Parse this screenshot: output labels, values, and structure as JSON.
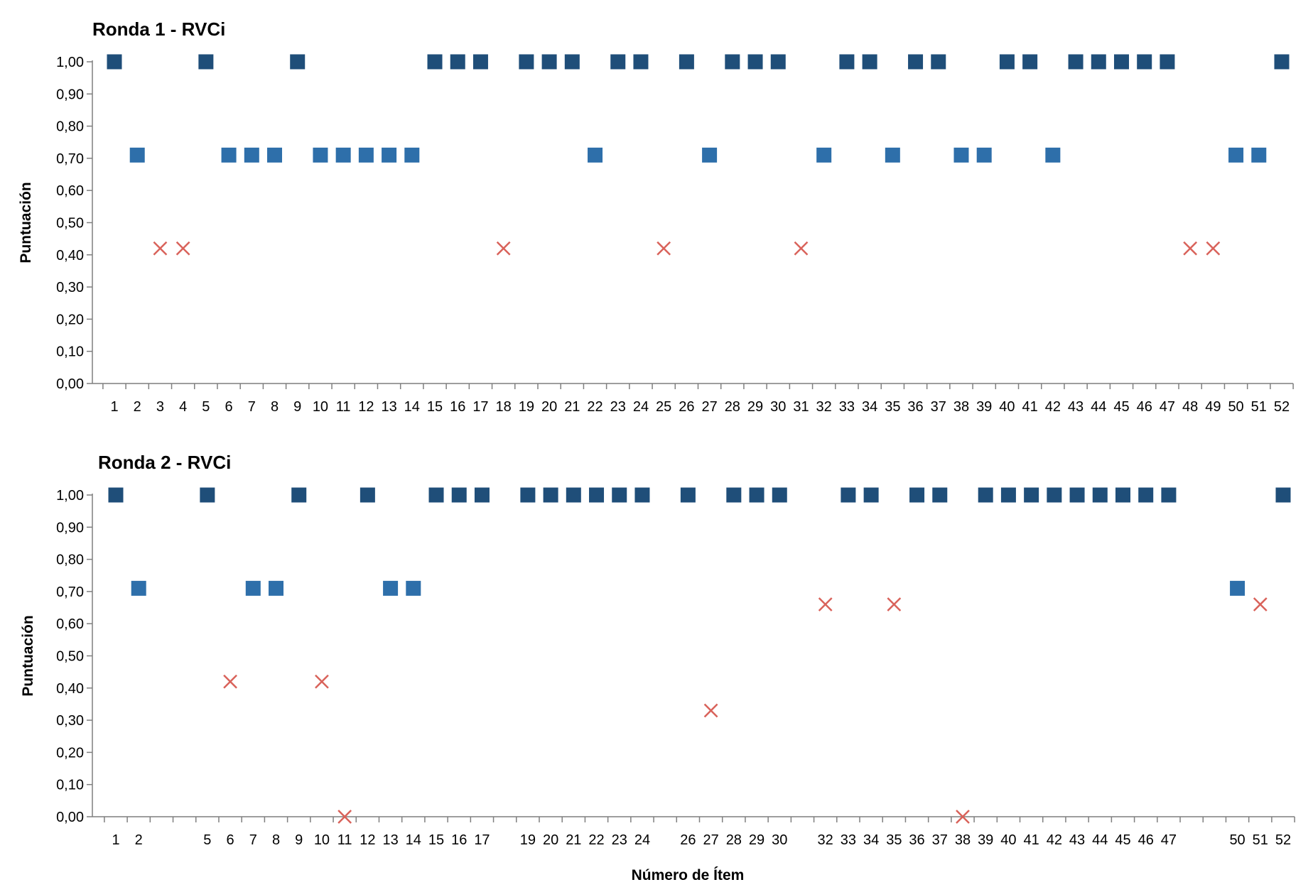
{
  "colors": {
    "dark_square": "#1F4E79",
    "light_square": "#2E6FAA",
    "cross": "#D9625A",
    "axis": "#7F7F7F"
  },
  "x_axis_label": "Número de Ítem",
  "chart_data": [
    {
      "type": "scatter",
      "title": "Ronda 1 - RVCi",
      "ylabel": "Puntuación",
      "xlabel": "",
      "ylim": [
        0,
        1
      ],
      "y_ticks": [
        "0,00",
        "0,10",
        "0,20",
        "0,30",
        "0,40",
        "0,50",
        "0,60",
        "0,70",
        "0,80",
        "0,90",
        "1,00"
      ],
      "x_range": [
        1,
        52
      ],
      "x_tick_labels": [
        "1",
        "2",
        "3",
        "4",
        "5",
        "6",
        "7",
        "8",
        "9",
        "10",
        "11",
        "12",
        "13",
        "14",
        "15",
        "16",
        "17",
        "18",
        "19",
        "20",
        "21",
        "22",
        "23",
        "24",
        "25",
        "26",
        "27",
        "28",
        "29",
        "30",
        "31",
        "32",
        "33",
        "34",
        "35",
        "36",
        "37",
        "38",
        "39",
        "40",
        "41",
        "42",
        "43",
        "44",
        "45",
        "46",
        "47",
        "48",
        "49",
        "50",
        "51",
        "52"
      ],
      "series": [
        {
          "marker": "dark-square",
          "y": 1.0,
          "x": [
            1,
            5,
            9,
            15,
            16,
            17,
            19,
            20,
            21,
            23,
            24,
            26,
            28,
            29,
            30,
            33,
            34,
            36,
            37,
            40,
            41,
            43,
            44,
            45,
            46,
            47,
            52
          ]
        },
        {
          "marker": "light-square",
          "y": 0.71,
          "x": [
            2,
            6,
            7,
            8,
            10,
            11,
            12,
            13,
            14,
            22,
            27,
            32,
            35,
            38,
            39,
            42,
            50,
            51
          ]
        },
        {
          "marker": "cross",
          "y": 0.42,
          "x": [
            3,
            4,
            18,
            25,
            31,
            48,
            49
          ]
        }
      ]
    },
    {
      "type": "scatter",
      "title": "Ronda 2 - RVCi",
      "ylabel": "Puntuación",
      "xlabel": "Número de Ítem",
      "ylim": [
        0,
        1
      ],
      "y_ticks": [
        "0,00",
        "0,10",
        "0,20",
        "0,30",
        "0,40",
        "0,50",
        "0,60",
        "0,70",
        "0,80",
        "0,90",
        "1,00"
      ],
      "x_range": [
        1,
        52
      ],
      "x_tick_labels": [
        "1",
        "2",
        "",
        "",
        "5",
        "6",
        "7",
        "8",
        "9",
        "10",
        "11",
        "12",
        "13",
        "14",
        "15",
        "16",
        "17",
        "",
        "19",
        "20",
        "21",
        "22",
        "23",
        "24",
        "",
        "26",
        "27",
        "28",
        "29",
        "30",
        "",
        "32",
        "33",
        "34",
        "35",
        "36",
        "37",
        "38",
        "39",
        "40",
        "41",
        "42",
        "43",
        "44",
        "45",
        "46",
        "47",
        "",
        "",
        "50",
        "51",
        "52"
      ],
      "series": [
        {
          "marker": "dark-square",
          "y": 1.0,
          "x": [
            1,
            5,
            9,
            12,
            15,
            16,
            17,
            19,
            20,
            21,
            22,
            23,
            24,
            26,
            28,
            29,
            30,
            33,
            34,
            36,
            37,
            39,
            40,
            41,
            42,
            43,
            44,
            45,
            46,
            47,
            52
          ]
        },
        {
          "marker": "light-square",
          "y": 0.71,
          "x": [
            2,
            7,
            8,
            13,
            14,
            50
          ]
        },
        {
          "marker": "cross",
          "points": [
            [
              6,
              0.42
            ],
            [
              10,
              0.42
            ],
            [
              11,
              0.0
            ],
            [
              27,
              0.33
            ],
            [
              32,
              0.66
            ],
            [
              35,
              0.66
            ],
            [
              38,
              0.0
            ],
            [
              51,
              0.66
            ]
          ]
        }
      ]
    }
  ]
}
